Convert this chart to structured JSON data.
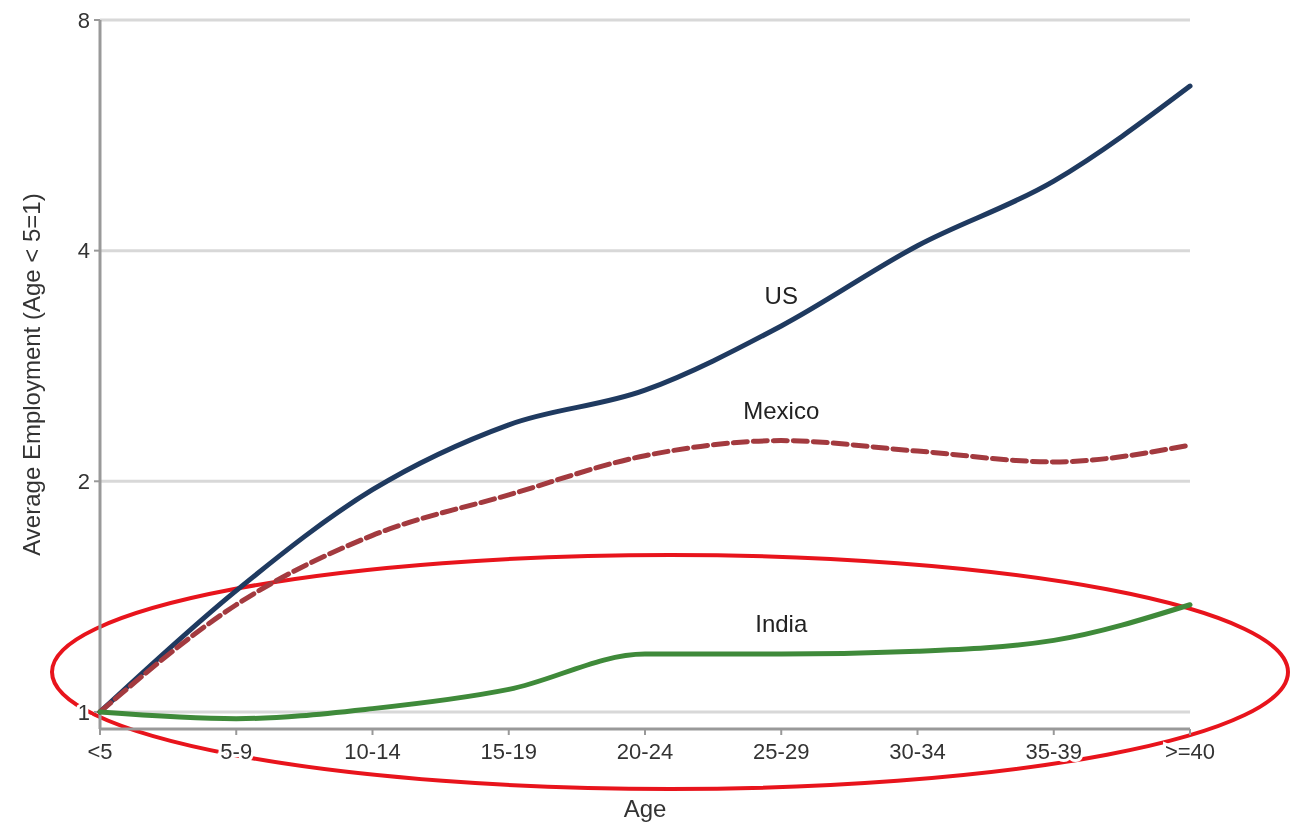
{
  "chart_data": {
    "type": "line",
    "xlabel": "Age",
    "ylabel": "Average Employment (Age < 5=1)",
    "categories": [
      "<5",
      "5-9",
      "10-14",
      "15-19",
      "20-24",
      "25-29",
      "30-34",
      "35-39",
      ">=40"
    ],
    "series": [
      {
        "name": "US",
        "color": "#1f3a60",
        "line_style": "solid",
        "values": [
          1,
          1.44,
          1.95,
          2.37,
          2.63,
          3.19,
          4.06,
          4.93,
          6.56
        ]
      },
      {
        "name": "Mexico",
        "color": "#a33a3f",
        "line_style": "dashed",
        "values": [
          1,
          1.38,
          1.7,
          1.92,
          2.16,
          2.26,
          2.19,
          2.12,
          2.23
        ]
      },
      {
        "name": "India",
        "color": "#3f8a3a",
        "line_style": "solid",
        "values": [
          1,
          0.98,
          1.01,
          1.07,
          1.19,
          1.19,
          1.2,
          1.24,
          1.38
        ]
      }
    ],
    "log": "y",
    "ylim": [
      0.95,
      8
    ],
    "yticks": [
      1,
      2,
      4,
      8
    ],
    "grid": "y",
    "marker": "none"
  }
}
